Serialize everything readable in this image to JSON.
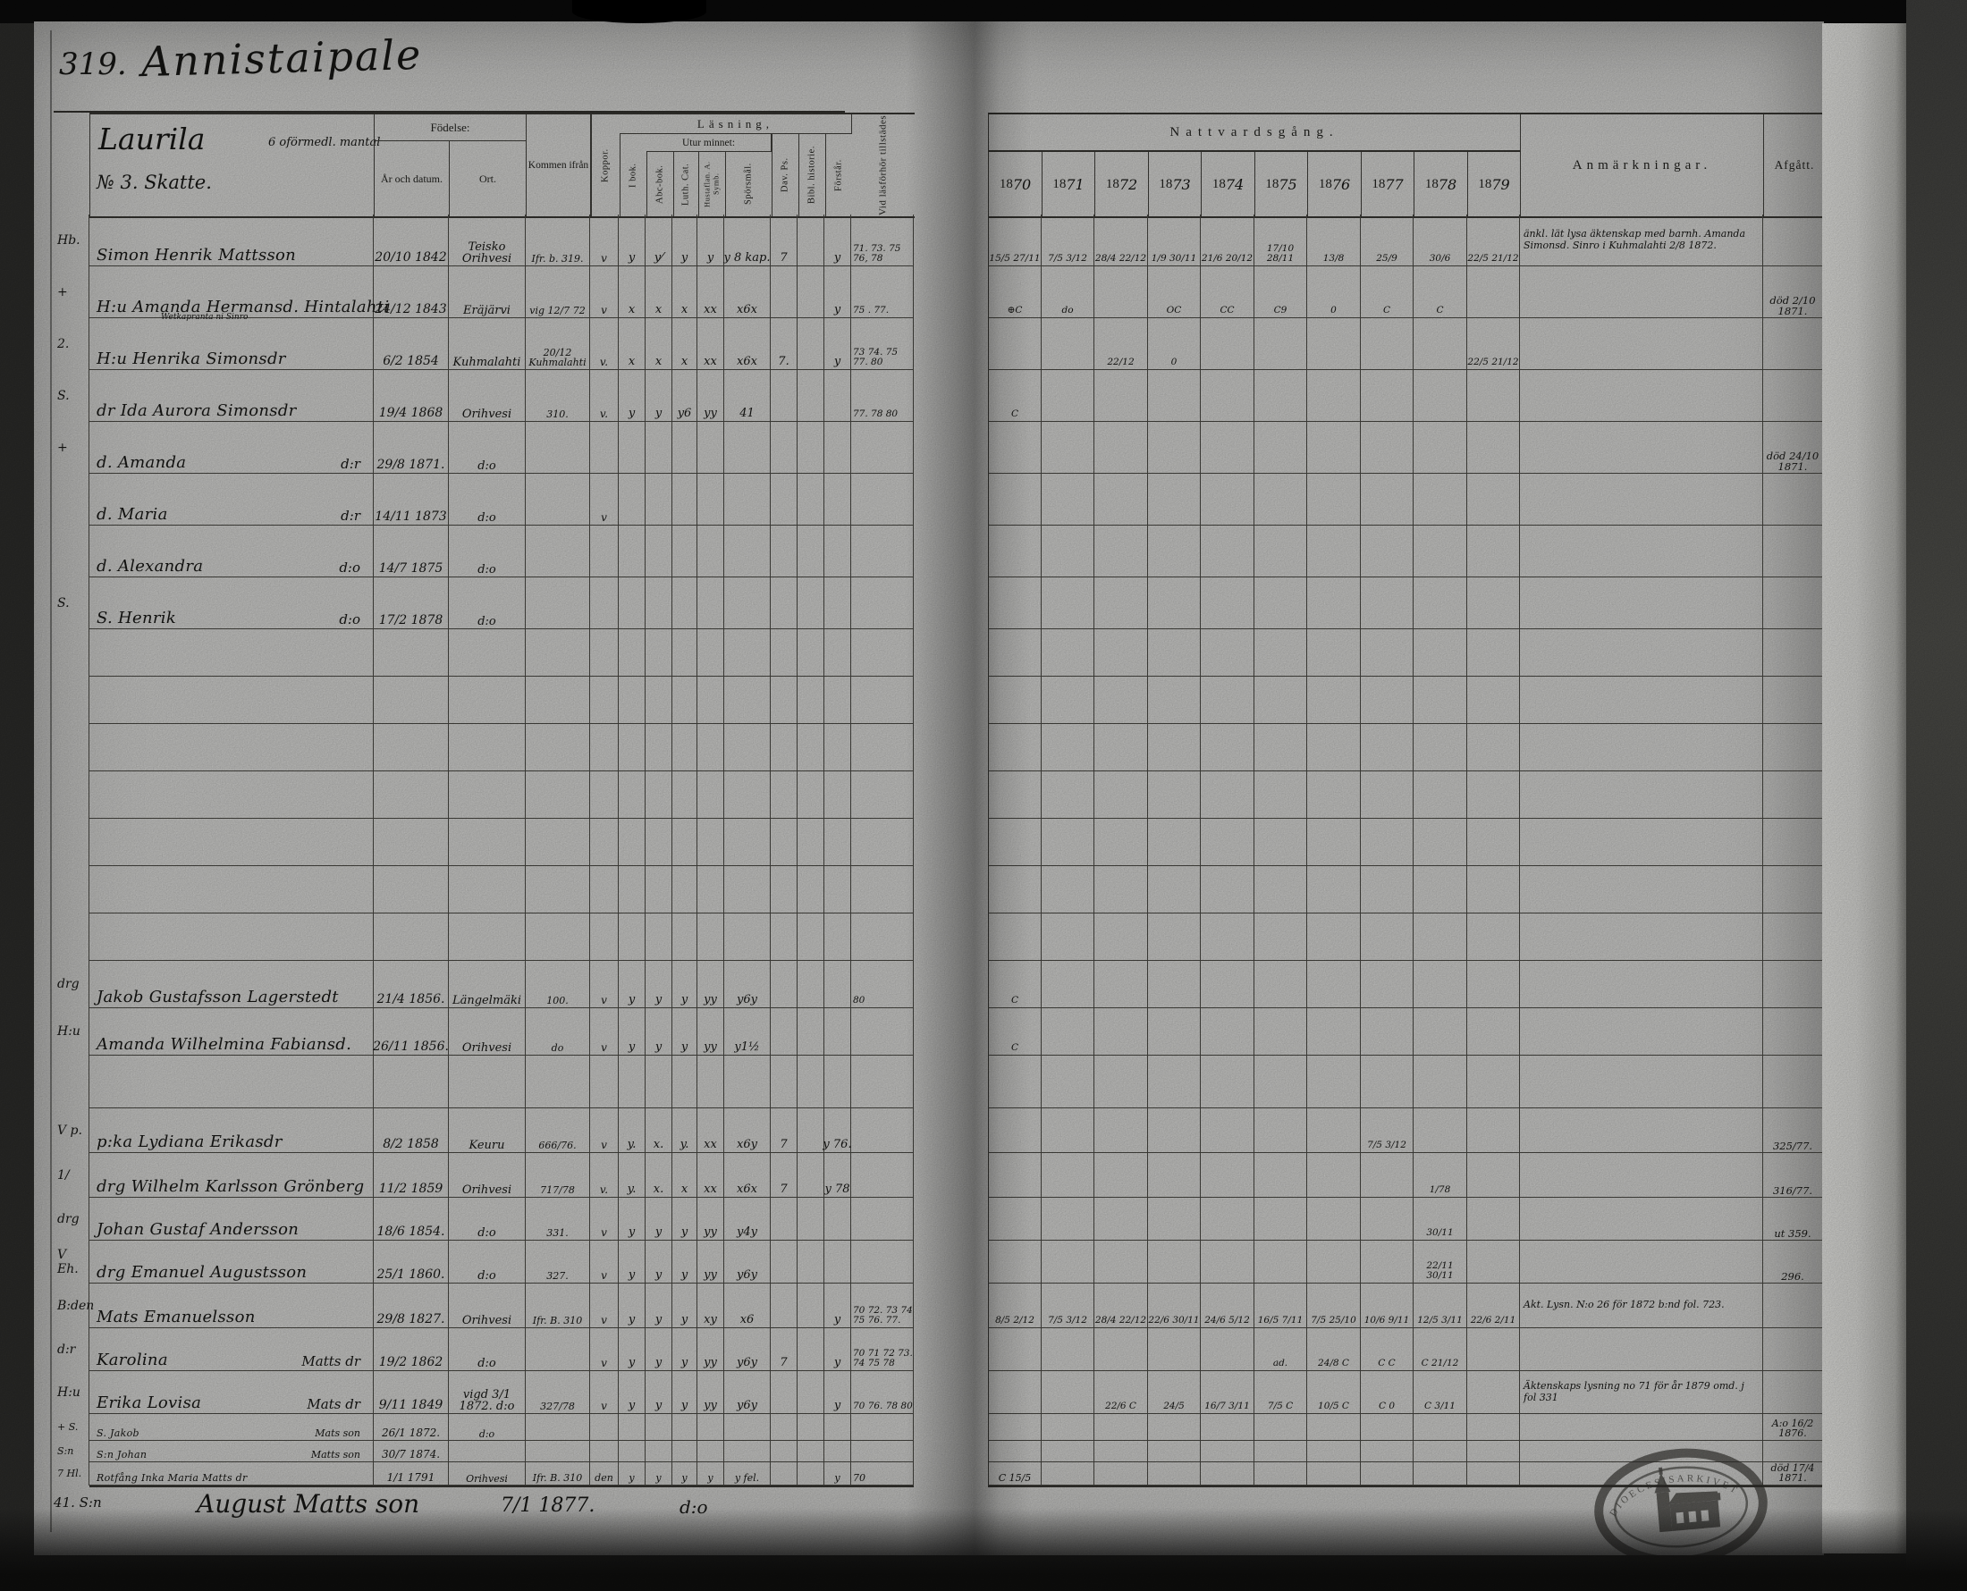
{
  "page": {
    "no": "319.",
    "title": "Annistaipale",
    "farm": "Laurila",
    "farm_note": "6 oförmedl. mantal",
    "estate": "№ 3. Skatte."
  },
  "headers": {
    "birth_group": "Födelse:",
    "birth_year": "År och datum.",
    "birth_place": "Ort.",
    "come_from": "Kommen ifrån",
    "smallpox": "Koppor.",
    "reading_group": "Läsning,",
    "in_book": "I bok.",
    "from_memory": "Utur minnet:",
    "abc_book": "Abc-bok.",
    "luth_cat": "Luth. Cat.",
    "symbolum": "Hustaflan. A. Symb.",
    "questions": "Spörsmål.",
    "davids_psalms": "Dav. Ps.",
    "bible_history": "Bibl. historie.",
    "understands": "Förstår.",
    "attendance": "Vid läsförhör tillstädes",
    "communion_group": "Nattvardsgång.",
    "years": [
      "1870",
      "1871",
      "1872",
      "1873",
      "1874",
      "1875",
      "1876",
      "1877",
      "1878",
      "1879"
    ],
    "remarks": "Anmärkningar.",
    "departed": "Afgått."
  },
  "rows": [
    {
      "m": "Hb.",
      "name": "Simon Henrik Mattsson",
      "b": "20/10 1842",
      "ort": "Teisko Orihvesi",
      "from": "Ifr. b. 319.",
      "kop": "v",
      "rd": [
        "y",
        "y⁄",
        "y",
        "y",
        "y 8 kap.",
        "7",
        "",
        "y"
      ],
      "att": "71. 73. 75 76, 78",
      "cm": [
        "15/5 27/11",
        "7/5 3/12",
        "28/4 22/12",
        "1/9 30/11",
        "21/6 20/12",
        "17/10 28/11",
        "13/8",
        "25/9",
        "30/6",
        "22/5 21/12"
      ],
      "rem": "änkl. lät lysa äktenskap med barnh. Amanda Simonsd. Sinro i Kuhmalahti 2/8 1872.",
      "dep": ""
    },
    {
      "m": "+",
      "name": "H:u Amanda Hermansd. Hintalahti",
      "b": "24/12 1843",
      "ort": "Eräjärvi",
      "from": "vig 12/7 72",
      "kop": "v",
      "rd": [
        "x",
        "x",
        "x",
        "xx",
        "x6x",
        "",
        "",
        "y"
      ],
      "att": "75 . 77.",
      "cm": [
        "⊕C",
        "do",
        "",
        "OC",
        "CC",
        "C9",
        "0",
        "C",
        "C",
        ""
      ],
      "rem": "",
      "dep": "död 2/10 1871."
    },
    {
      "m": "2.",
      "name": "H:u Henrika Simonsdr",
      "note": "Wetkapranta ni Sinro",
      "b": "6/2 1854",
      "ort": "Kuhmalahti",
      "from": "20/12 Kuhmalahti",
      "kop": "v.",
      "rd": [
        "x",
        "x",
        "x",
        "xx",
        "x6x",
        "7.",
        "",
        "y"
      ],
      "att": "73 74. 75 77. 80",
      "cm": [
        "",
        "",
        "22/12",
        "0",
        "",
        "",
        "",
        "",
        "",
        "22/5 21/12"
      ],
      "rem": "",
      "dep": ""
    },
    {
      "m": "S.",
      "name": "dr Ida Aurora Simonsdr",
      "b": "19/4 1868",
      "ort": "Orihvesi",
      "from": "310.",
      "kop": "v.",
      "rd": [
        "y",
        "y",
        "y6",
        "yy",
        "41",
        "",
        "",
        ""
      ],
      "att": "77. 78 80",
      "cm": [
        "C",
        "",
        "",
        "",
        "",
        "",
        "",
        "",
        "",
        ""
      ],
      "rem": "",
      "dep": ""
    },
    {
      "m": "+",
      "name": "d. Amanda",
      "dit": "d:r",
      "b": "29/8 1871.",
      "ort": "d:o",
      "dep": "död 24/10 1871."
    },
    {
      "name": "d. Maria",
      "dit": "d:r",
      "b": "14/11 1873",
      "ort": "d:o",
      "kop": "v"
    },
    {
      "name": "d. Alexandra",
      "dit": "d:o",
      "b": "14/7 1875",
      "ort": "d:o"
    },
    {
      "m": "S.",
      "name": "S. Henrik",
      "dit": "d:o",
      "b": "17/2 1878",
      "ort": "d:o"
    },
    {},
    {},
    {},
    {},
    {},
    {},
    {},
    {
      "m": "drg",
      "name": "Jakob Gustafsson Lagerstedt",
      "b": "21/4 1856.",
      "ort": "Längelmäki",
      "from": "100.",
      "kop": "v",
      "rd": [
        "y",
        "y",
        "y",
        "yy",
        "y6y",
        "",
        "",
        ""
      ],
      "att": "80",
      "cm": [
        "C",
        "",
        "",
        "",
        "",
        "",
        "",
        "",
        "",
        ""
      ]
    },
    {
      "m": "H:u",
      "name": "Amanda Wilhelmina Fabiansd.",
      "b": "26/11 1856.",
      "ort": "Orihvesi",
      "from": "do",
      "kop": "v",
      "rd": [
        "y",
        "y",
        "y",
        "yy",
        "y1½",
        "",
        "",
        ""
      ],
      "cm": [
        "C",
        "",
        "",
        "",
        "",
        "",
        "",
        "",
        "",
        ""
      ]
    },
    {},
    {
      "m": "V p.",
      "name": "p:ka Lydiana Erikasdr",
      "b": "8/2 1858",
      "ort": "Keuru",
      "from": "666/76.",
      "kop": "v",
      "rd": [
        "y.",
        "x.",
        "y.",
        "xx",
        "x6y",
        "7",
        "",
        "y 76."
      ],
      "cm": [
        "",
        "",
        "",
        "",
        "",
        "",
        "",
        "7/5 3/12",
        "",
        ""
      ],
      "dep": "325/77."
    },
    {
      "m": "1/",
      "name": "drg Wilhelm Karlsson Grönberg",
      "b": "11/2 1859",
      "ort": "Orihvesi",
      "from": "717/78",
      "kop": "v.",
      "rd": [
        "y.",
        "x.",
        "x",
        "xx",
        "x6x",
        "7",
        "",
        "y 78"
      ],
      "cm": [
        "",
        "",
        "",
        "",
        "",
        "",
        "",
        "",
        "1/78",
        ""
      ],
      "dep": "316/77."
    },
    {
      "m": "drg",
      "name": "Johan Gustaf Andersson",
      "b": "18/6 1854.",
      "ort": "d:o",
      "from": "331.",
      "kop": "v",
      "rd": [
        "y",
        "y",
        "y",
        "yy",
        "y4y",
        "",
        "",
        ""
      ],
      "cm": [
        "",
        "",
        "",
        "",
        "",
        "",
        "",
        "",
        "30/11",
        ""
      ],
      "dep": "ut 359."
    },
    {
      "m": "V Eh.",
      "name": "drg Emanuel Augustsson",
      "b": "25/1 1860.",
      "ort": "d:o",
      "from": "327.",
      "kop": "v",
      "rd": [
        "y",
        "y",
        "y",
        "yy",
        "y6y",
        "",
        "",
        ""
      ],
      "cm": [
        "",
        "",
        "",
        "",
        "",
        "",
        "",
        "",
        "22/11 30/11",
        ""
      ],
      "dep": "296."
    },
    {
      "m": "B:den",
      "name": "Mats Emanuelsson",
      "b": "29/8 1827.",
      "ort": "Orihvesi",
      "from": "Ifr. B. 310",
      "kop": "v",
      "rd": [
        "y",
        "y",
        "y",
        "xy",
        "x6",
        "",
        "",
        "y"
      ],
      "att": "70 72. 73 74 75 76. 77.",
      "cm": [
        "8/5 2/12",
        "7/5 3/12",
        "28/4 22/12",
        "22/6 30/11",
        "24/6 5/12",
        "16/5 7/11",
        "7/5 25/10",
        "10/6 9/11",
        "12/5 3/11",
        "22/6 2/11"
      ],
      "rem": "Akt. Lysn. N:o 26 för 1872 b:nd fol. 723."
    },
    {
      "m": "d:r",
      "name": "Karolina",
      "dit": "Matts dr",
      "b": "19/2 1862",
      "ort": "d:o",
      "kop": "v",
      "rd": [
        "y",
        "y",
        "y",
        "yy",
        "y6y",
        "7",
        "",
        "y"
      ],
      "att": "70 71 72 73. 74 75 78",
      "cm": [
        "",
        "",
        "",
        "",
        "",
        "ad.",
        "24/8 C",
        "C C",
        "C 21/12",
        ""
      ]
    },
    {
      "m": "H:u",
      "name": "Erika Lovisa",
      "dit": "Mats dr",
      "b": "9/11 1849",
      "ort": "vigd 3/1 1872. d:o",
      "from": "327/78",
      "kop": "v",
      "rd": [
        "y",
        "y",
        "y",
        "yy",
        "y6y",
        "",
        "",
        "y"
      ],
      "att": "70 76. 78 80",
      "cm": [
        "",
        "",
        "22/6 C",
        "24/5",
        "16/7 3/11",
        "7/5 C",
        "10/5 C",
        "C 0",
        "C 3/11",
        ""
      ],
      "rem": "Äktenskaps lysning no 71 för år 1879 omd. j fol 331"
    },
    {
      "m": "+ S.",
      "name": "S. Jakob",
      "dit": "Mats son",
      "b": "26/1 1872.",
      "ort": "d:o",
      "dep": "A:o 16/2 1876."
    },
    {
      "m": "S:n",
      "name": "S:n Johan",
      "dit": "Matts son",
      "b": "30/7 1874."
    },
    {
      "m": "7 Hl.",
      "name": "Rotfång Inka Maria Matts dr",
      "b": "1/1 1791",
      "ort": "Orihvesi",
      "from": "Ifr. B. 310",
      "kop": "den",
      "rd": [
        "y",
        "y",
        "y",
        "y",
        "y fel.",
        "",
        "",
        "y"
      ],
      "att": "70",
      "cm": [
        "C 15/5",
        "",
        "",
        "",
        "",
        "",
        "",
        "",
        "",
        ""
      ],
      "dep": "död 17/4 1871."
    }
  ],
  "below": {
    "m": "41. S:n",
    "text": "August Matts son",
    "date": "7/1 1877.",
    "dit": "d:o"
  },
  "stamp": {
    "text": "DIOECESISARKIVET"
  },
  "colors": {
    "paper": "#c7c7c5",
    "ink": "#151513",
    "rule": "#3b3a36",
    "surround": "#0a0a0a"
  }
}
